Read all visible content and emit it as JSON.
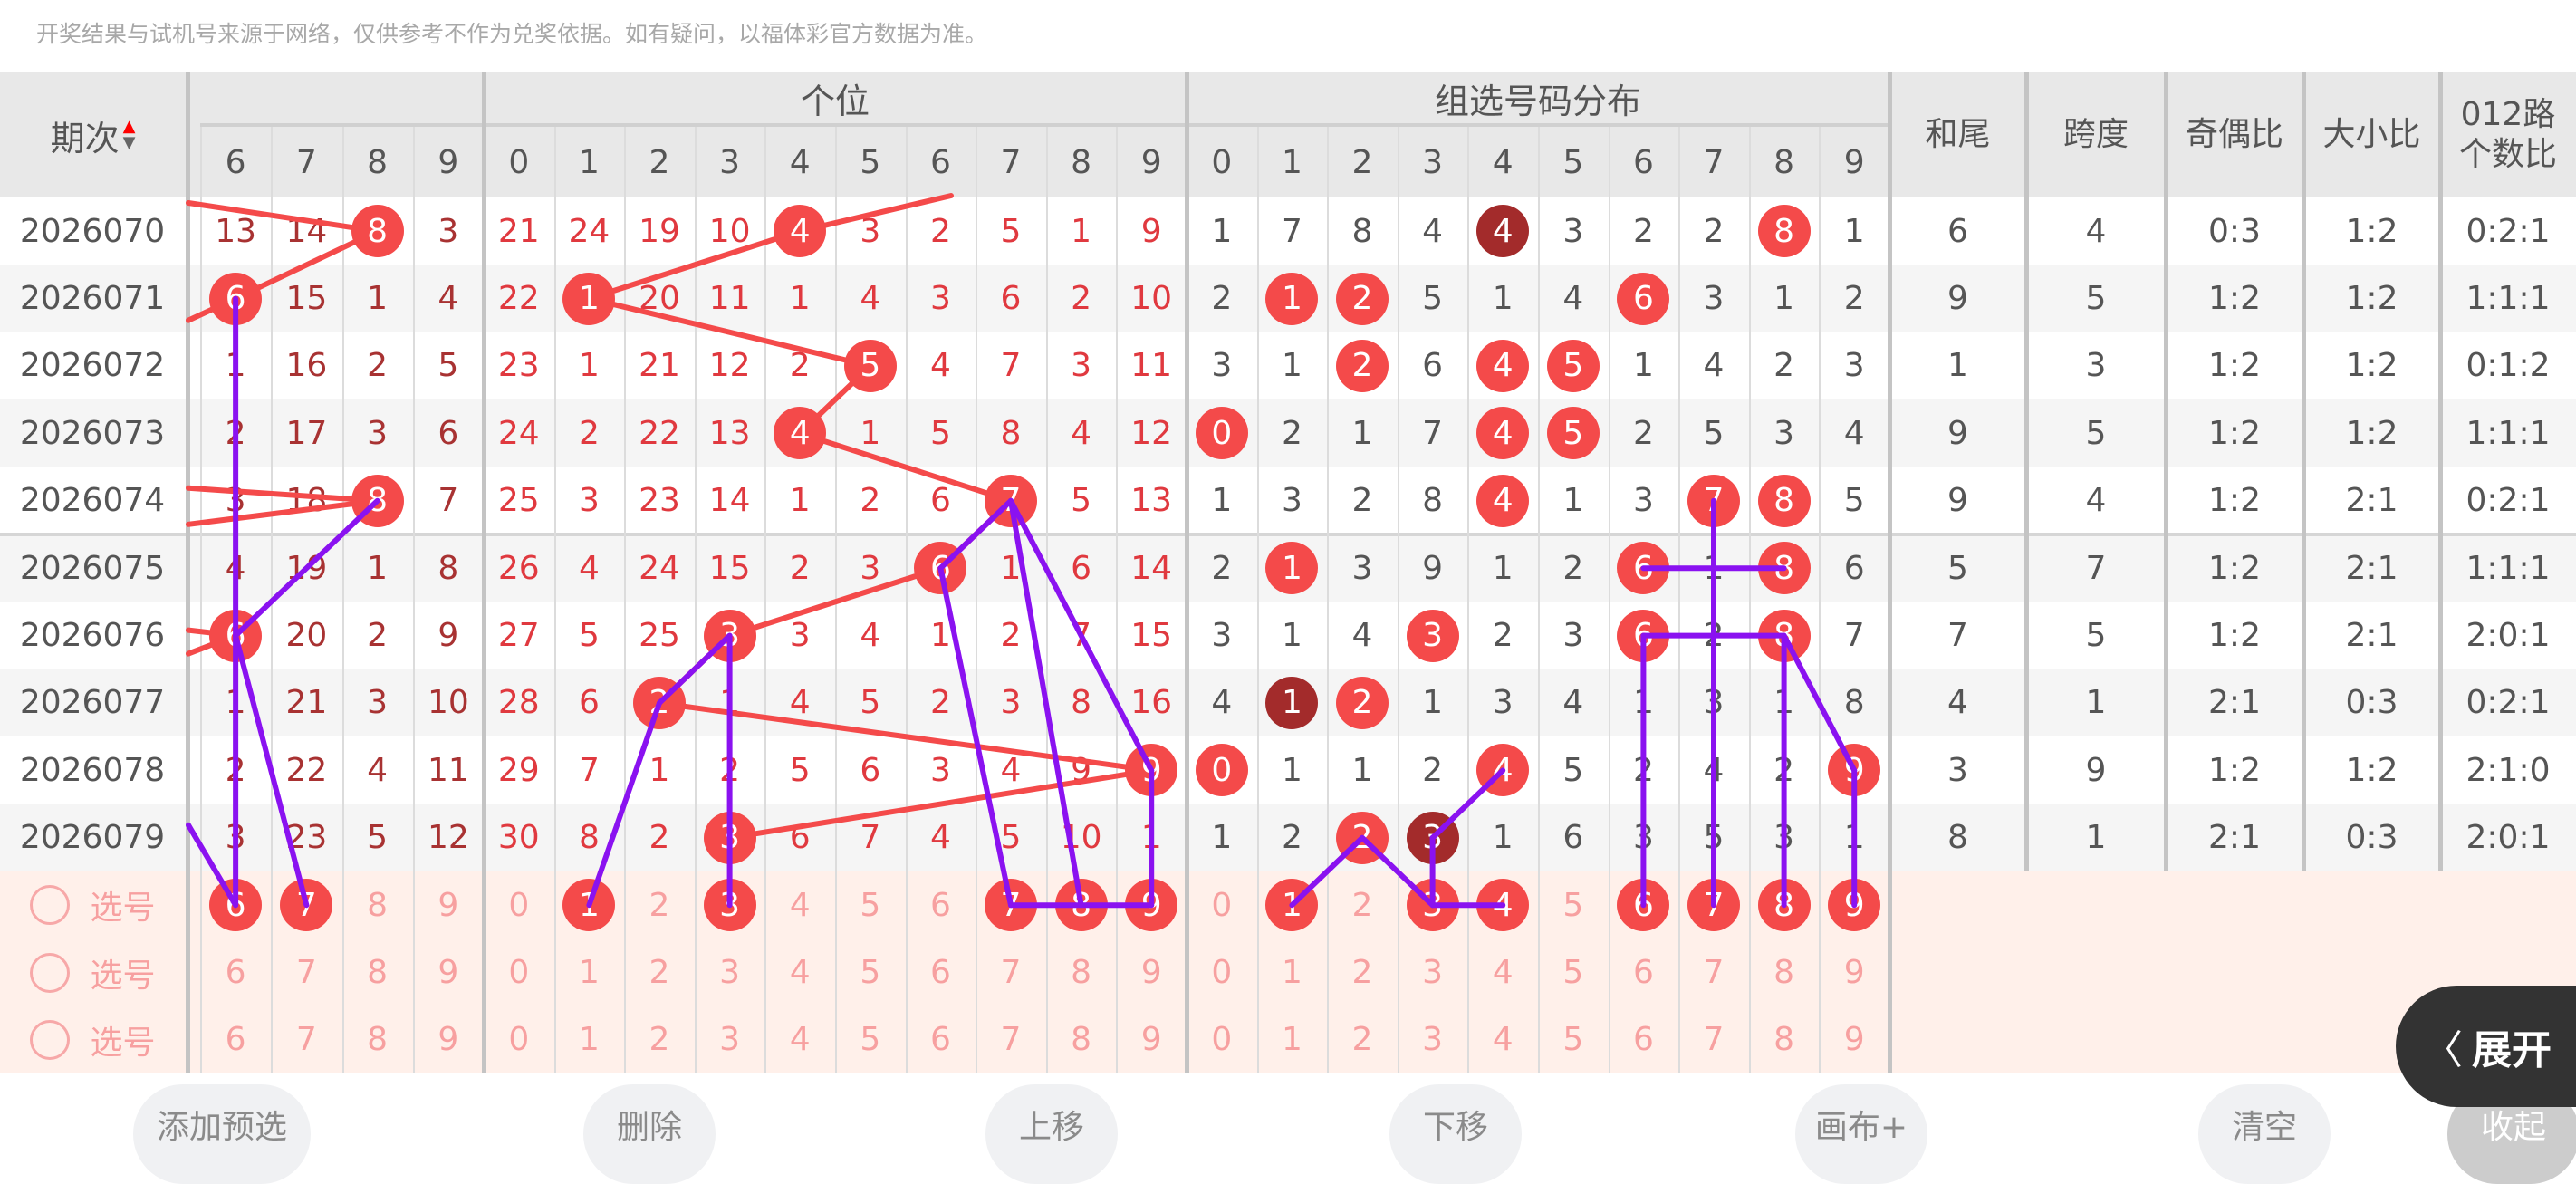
{
  "notice": "开奖结果与试机号来源于网络，仅供参考不作为兑奖依据。如有疑问，以福体彩官方数据为准。",
  "header": {
    "period": "期次",
    "group_tail_title": "",
    "group_tail_digits": [
      "6",
      "7",
      "8",
      "9"
    ],
    "ones_title": "个位",
    "combo_title": "组选号码分布",
    "digits": [
      "0",
      "1",
      "2",
      "3",
      "4",
      "5",
      "6",
      "7",
      "8",
      "9"
    ],
    "stats": [
      "和尾",
      "跨度",
      "奇偶比",
      "大小比",
      "012路\n个数比"
    ]
  },
  "colors": {
    "ball": "#f44a4a",
    "ball_dark": "#a32b2b",
    "draw_line": "#8a12f0",
    "trend_line": "#f44a4a"
  },
  "rows": [
    {
      "period": "2026070",
      "tail": [
        "13",
        "14",
        "8",
        "3"
      ],
      "tail_hit": [
        2
      ],
      "ones": [
        "21",
        "24",
        "19",
        "10",
        "4",
        "3",
        "2",
        "5",
        "1",
        "9"
      ],
      "ones_hit": 4,
      "combo": [
        "1",
        "7",
        "8",
        "4",
        "4",
        "3",
        "2",
        "2",
        "8",
        "1"
      ],
      "combo_red": [
        8
      ],
      "combo_dark": [
        4
      ],
      "stats": [
        "6",
        "4",
        "0:3",
        "1:2",
        "0:2:1"
      ]
    },
    {
      "period": "2026071",
      "tail": [
        "6",
        "15",
        "1",
        "4"
      ],
      "tail_hit": [
        0
      ],
      "ones": [
        "22",
        "1",
        "20",
        "11",
        "1",
        "4",
        "3",
        "6",
        "2",
        "10"
      ],
      "ones_hit": 1,
      "combo": [
        "2",
        "1",
        "2",
        "5",
        "1",
        "4",
        "6",
        "3",
        "1",
        "2"
      ],
      "combo_red": [
        1,
        2,
        6
      ],
      "combo_dark": [],
      "stats": [
        "9",
        "5",
        "1:2",
        "1:2",
        "1:1:1"
      ]
    },
    {
      "period": "2026072",
      "tail": [
        "1",
        "16",
        "2",
        "5"
      ],
      "tail_hit": [],
      "ones": [
        "23",
        "1",
        "21",
        "12",
        "2",
        "5",
        "4",
        "7",
        "3",
        "11"
      ],
      "ones_hit": 5,
      "combo": [
        "3",
        "1",
        "2",
        "6",
        "4",
        "5",
        "1",
        "4",
        "2",
        "3"
      ],
      "combo_red": [
        2,
        4,
        5
      ],
      "combo_dark": [],
      "stats": [
        "1",
        "3",
        "1:2",
        "1:2",
        "0:1:2"
      ]
    },
    {
      "period": "2026073",
      "tail": [
        "2",
        "17",
        "3",
        "6"
      ],
      "tail_hit": [],
      "ones": [
        "24",
        "2",
        "22",
        "13",
        "4",
        "1",
        "5",
        "8",
        "4",
        "12"
      ],
      "ones_hit": 4,
      "combo": [
        "0",
        "2",
        "1",
        "7",
        "4",
        "5",
        "2",
        "5",
        "3",
        "4"
      ],
      "combo_red": [
        0,
        4,
        5
      ],
      "combo_dark": [],
      "stats": [
        "9",
        "5",
        "1:2",
        "1:2",
        "1:1:1"
      ]
    },
    {
      "period": "2026074",
      "tail": [
        "3",
        "18",
        "8",
        "7"
      ],
      "tail_hit": [
        2
      ],
      "ones": [
        "25",
        "3",
        "23",
        "14",
        "1",
        "2",
        "6",
        "7",
        "5",
        "13"
      ],
      "ones_hit": 7,
      "combo": [
        "1",
        "3",
        "2",
        "8",
        "4",
        "1",
        "3",
        "7",
        "8",
        "5"
      ],
      "combo_red": [
        4,
        7,
        8
      ],
      "combo_dark": [],
      "stats": [
        "9",
        "4",
        "1:2",
        "2:1",
        "0:2:1"
      ]
    },
    {
      "period": "2026075",
      "tail": [
        "4",
        "19",
        "1",
        "8"
      ],
      "tail_hit": [],
      "ones": [
        "26",
        "4",
        "24",
        "15",
        "2",
        "3",
        "6",
        "1",
        "6",
        "14"
      ],
      "ones_hit": 6,
      "combo": [
        "2",
        "1",
        "3",
        "9",
        "1",
        "2",
        "6",
        "1",
        "8",
        "6"
      ],
      "combo_red": [
        1,
        6,
        8
      ],
      "combo_dark": [],
      "stats": [
        "5",
        "7",
        "1:2",
        "2:1",
        "1:1:1"
      ]
    },
    {
      "period": "2026076",
      "tail": [
        "6",
        "20",
        "2",
        "9"
      ],
      "tail_hit": [
        0
      ],
      "ones": [
        "27",
        "5",
        "25",
        "3",
        "3",
        "4",
        "1",
        "2",
        "7",
        "15"
      ],
      "ones_hit": 3,
      "combo": [
        "3",
        "1",
        "4",
        "3",
        "2",
        "3",
        "6",
        "2",
        "8",
        "7"
      ],
      "combo_red": [
        3,
        6,
        8
      ],
      "combo_dark": [],
      "stats": [
        "7",
        "5",
        "1:2",
        "2:1",
        "2:0:1"
      ]
    },
    {
      "period": "2026077",
      "tail": [
        "1",
        "21",
        "3",
        "10"
      ],
      "tail_hit": [],
      "ones": [
        "28",
        "6",
        "2",
        "1",
        "4",
        "5",
        "2",
        "3",
        "8",
        "16"
      ],
      "ones_hit": 2,
      "combo": [
        "4",
        "1",
        "2",
        "1",
        "3",
        "4",
        "1",
        "3",
        "1",
        "8"
      ],
      "combo_red": [
        2
      ],
      "combo_dark": [
        1
      ],
      "stats": [
        "4",
        "1",
        "2:1",
        "0:3",
        "0:2:1"
      ]
    },
    {
      "period": "2026078",
      "tail": [
        "2",
        "22",
        "4",
        "11"
      ],
      "tail_hit": [],
      "ones": [
        "29",
        "7",
        "1",
        "2",
        "5",
        "6",
        "3",
        "4",
        "9",
        "9"
      ],
      "ones_hit": 9,
      "combo": [
        "0",
        "1",
        "1",
        "2",
        "4",
        "5",
        "2",
        "4",
        "2",
        "9"
      ],
      "combo_red": [
        0,
        4,
        9
      ],
      "combo_dark": [],
      "stats": [
        "3",
        "9",
        "1:2",
        "1:2",
        "2:1:0"
      ]
    },
    {
      "period": "2026079",
      "tail": [
        "3",
        "23",
        "5",
        "12"
      ],
      "tail_hit": [],
      "ones": [
        "30",
        "8",
        "2",
        "3",
        "6",
        "7",
        "4",
        "5",
        "10",
        "1"
      ],
      "ones_hit": 3,
      "combo": [
        "1",
        "2",
        "2",
        "3",
        "1",
        "6",
        "3",
        "5",
        "3",
        "1"
      ],
      "combo_red": [
        2
      ],
      "combo_dark": [
        3
      ],
      "stats": [
        "8",
        "1",
        "2:1",
        "0:3",
        "2:0:1"
      ]
    }
  ],
  "selection": {
    "label": "选号",
    "rows": [
      {
        "tail_sel": [
          0,
          1
        ],
        "ones_sel": [
          1,
          3,
          7,
          8,
          9
        ],
        "combo_sel": [
          1,
          3,
          4,
          6,
          7,
          8,
          9
        ]
      },
      {
        "tail_sel": [],
        "ones_sel": [],
        "combo_sel": []
      },
      {
        "tail_sel": [],
        "ones_sel": [],
        "combo_sel": []
      }
    ]
  },
  "buttons": [
    "添加预选",
    "删除",
    "上移",
    "下移",
    "画布+",
    "清空",
    "收起"
  ],
  "expand_button": {
    "icon": "chevron-left-icon",
    "label": "展开"
  }
}
